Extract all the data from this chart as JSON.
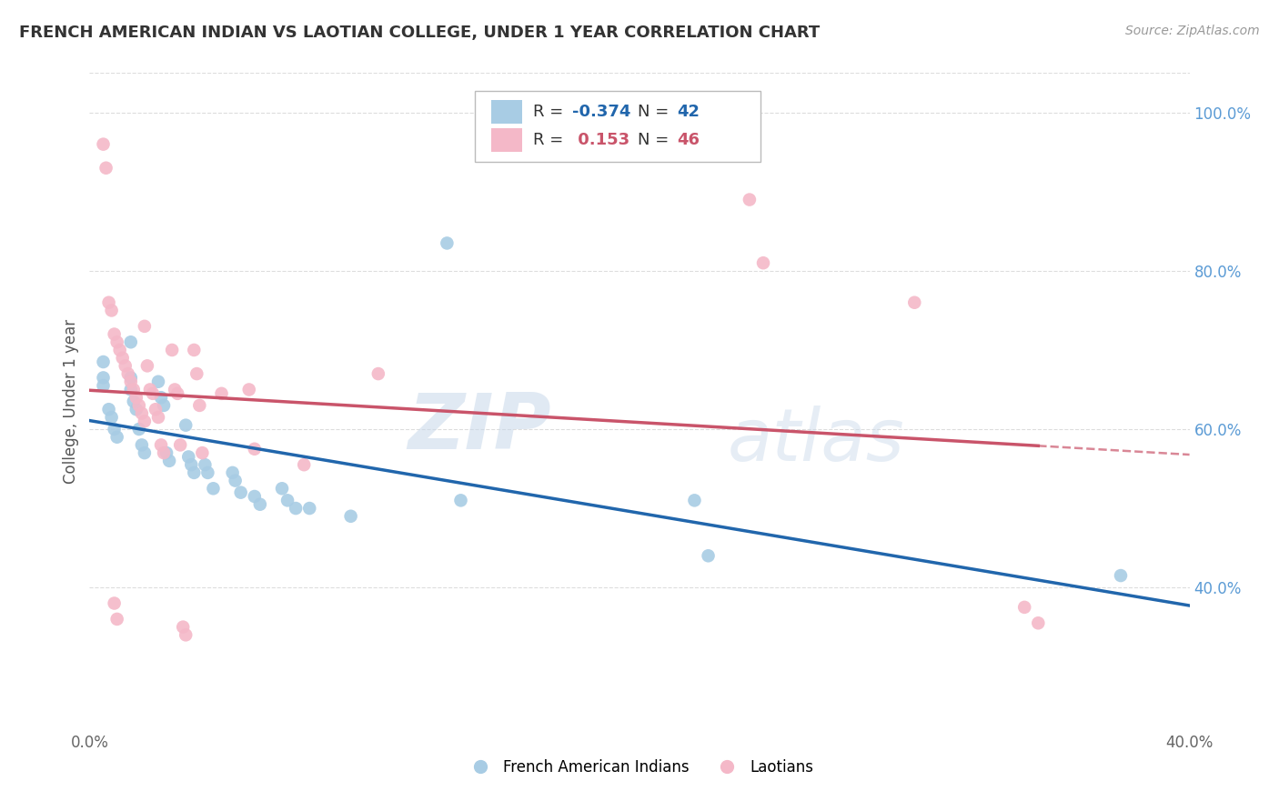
{
  "title": "FRENCH AMERICAN INDIAN VS LAOTIAN COLLEGE, UNDER 1 YEAR CORRELATION CHART",
  "source_text": "Source: ZipAtlas.com",
  "ylabel": "College, Under 1 year",
  "xlim": [
    0.0,
    0.4
  ],
  "ylim": [
    0.22,
    1.05
  ],
  "legend_R_blue": "-0.374",
  "legend_N_blue": "42",
  "legend_R_pink": "0.153",
  "legend_N_pink": "46",
  "blue_color": "#a8cce4",
  "pink_color": "#f4b8c8",
  "trend_blue_color": "#2166ac",
  "trend_pink_color": "#c9546a",
  "right_tick_color": "#5b9bd5",
  "blue_scatter": [
    [
      0.005,
      0.685
    ],
    [
      0.005,
      0.665
    ],
    [
      0.005,
      0.655
    ],
    [
      0.007,
      0.625
    ],
    [
      0.008,
      0.615
    ],
    [
      0.009,
      0.6
    ],
    [
      0.01,
      0.59
    ],
    [
      0.015,
      0.71
    ],
    [
      0.015,
      0.665
    ],
    [
      0.015,
      0.65
    ],
    [
      0.016,
      0.635
    ],
    [
      0.017,
      0.625
    ],
    [
      0.018,
      0.6
    ],
    [
      0.019,
      0.58
    ],
    [
      0.02,
      0.57
    ],
    [
      0.025,
      0.66
    ],
    [
      0.026,
      0.64
    ],
    [
      0.027,
      0.63
    ],
    [
      0.028,
      0.57
    ],
    [
      0.029,
      0.56
    ],
    [
      0.035,
      0.605
    ],
    [
      0.036,
      0.565
    ],
    [
      0.037,
      0.555
    ],
    [
      0.038,
      0.545
    ],
    [
      0.042,
      0.555
    ],
    [
      0.043,
      0.545
    ],
    [
      0.045,
      0.525
    ],
    [
      0.052,
      0.545
    ],
    [
      0.053,
      0.535
    ],
    [
      0.055,
      0.52
    ],
    [
      0.06,
      0.515
    ],
    [
      0.062,
      0.505
    ],
    [
      0.07,
      0.525
    ],
    [
      0.072,
      0.51
    ],
    [
      0.075,
      0.5
    ],
    [
      0.08,
      0.5
    ],
    [
      0.095,
      0.49
    ],
    [
      0.13,
      0.835
    ],
    [
      0.135,
      0.51
    ],
    [
      0.22,
      0.51
    ],
    [
      0.225,
      0.44
    ],
    [
      0.375,
      0.415
    ]
  ],
  "pink_scatter": [
    [
      0.005,
      0.96
    ],
    [
      0.006,
      0.93
    ],
    [
      0.007,
      0.76
    ],
    [
      0.008,
      0.75
    ],
    [
      0.009,
      0.72
    ],
    [
      0.01,
      0.71
    ],
    [
      0.011,
      0.7
    ],
    [
      0.012,
      0.69
    ],
    [
      0.013,
      0.68
    ],
    [
      0.014,
      0.67
    ],
    [
      0.015,
      0.66
    ],
    [
      0.016,
      0.65
    ],
    [
      0.017,
      0.64
    ],
    [
      0.018,
      0.63
    ],
    [
      0.019,
      0.62
    ],
    [
      0.02,
      0.61
    ],
    [
      0.009,
      0.38
    ],
    [
      0.01,
      0.36
    ],
    [
      0.02,
      0.73
    ],
    [
      0.021,
      0.68
    ],
    [
      0.022,
      0.65
    ],
    [
      0.023,
      0.645
    ],
    [
      0.024,
      0.625
    ],
    [
      0.025,
      0.615
    ],
    [
      0.026,
      0.58
    ],
    [
      0.027,
      0.57
    ],
    [
      0.03,
      0.7
    ],
    [
      0.031,
      0.65
    ],
    [
      0.032,
      0.645
    ],
    [
      0.033,
      0.58
    ],
    [
      0.034,
      0.35
    ],
    [
      0.035,
      0.34
    ],
    [
      0.038,
      0.7
    ],
    [
      0.039,
      0.67
    ],
    [
      0.04,
      0.63
    ],
    [
      0.041,
      0.57
    ],
    [
      0.048,
      0.645
    ],
    [
      0.058,
      0.65
    ],
    [
      0.06,
      0.575
    ],
    [
      0.078,
      0.555
    ],
    [
      0.105,
      0.67
    ],
    [
      0.24,
      0.89
    ],
    [
      0.245,
      0.81
    ],
    [
      0.3,
      0.76
    ],
    [
      0.34,
      0.375
    ],
    [
      0.345,
      0.355
    ]
  ],
  "watermark_zip": "ZIP",
  "watermark_atlas": "atlas",
  "background_color": "#ffffff",
  "grid_color": "#dddddd"
}
